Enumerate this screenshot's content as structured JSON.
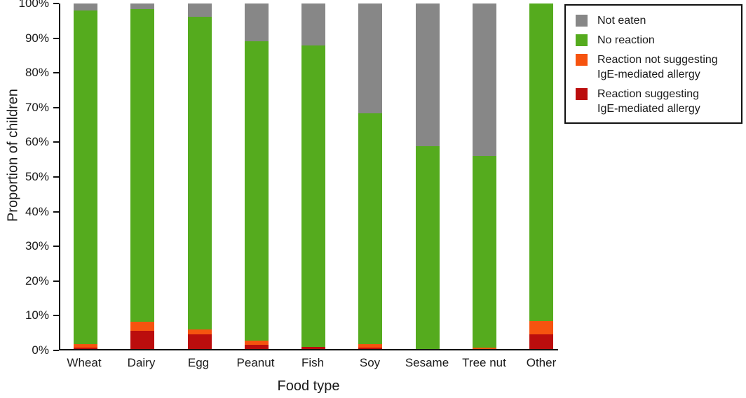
{
  "chart_data": {
    "type": "bar",
    "stacked": true,
    "stack_order": "bottom-to-top",
    "title": "",
    "xlabel": "Food type",
    "ylabel": "Proportion of children",
    "ylim": [
      0,
      100
    ],
    "yticks": [
      "0%",
      "10%",
      "20%",
      "30%",
      "40%",
      "50%",
      "60%",
      "70%",
      "80%",
      "90%",
      "100%"
    ],
    "grid": false,
    "categories": [
      "Wheat",
      "Dairy",
      "Egg",
      "Peanut",
      "Fish",
      "Soy",
      "Sesame",
      "Tree nut",
      "Other"
    ],
    "series": [
      {
        "key": "reaction-suggesting",
        "name": "Reaction suggesting IgE-mediated allergy",
        "color": "#bb0d0d",
        "values": [
          0.4,
          5.2,
          4.2,
          1.2,
          0.7,
          0.4,
          0,
          0,
          4.2
        ]
      },
      {
        "key": "reaction-not-suggesting",
        "name": "Reaction not suggesting IgE-mediated allergy",
        "color": "#f6530f",
        "values": [
          1.0,
          2.6,
          1.5,
          1.2,
          0,
          1.1,
          0,
          0.5,
          3.9
        ]
      },
      {
        "key": "no-reaction",
        "name": "No reaction",
        "color": "#55ab1e",
        "values": [
          96.6,
          90.5,
          90.4,
          86.7,
          87.1,
          66.8,
          58.8,
          55.3,
          91.9
        ]
      },
      {
        "key": "not-eaten",
        "name": "Not eaten",
        "color": "#878787",
        "values": [
          2.0,
          1.7,
          3.9,
          10.9,
          12.2,
          31.7,
          41.2,
          44.2,
          0
        ]
      }
    ],
    "legend": {
      "position": "top-right",
      "items": [
        {
          "key": "not-eaten",
          "label": "Not eaten",
          "color": "#878787"
        },
        {
          "key": "no-reaction",
          "label": "No reaction",
          "color": "#55ab1e"
        },
        {
          "key": "reaction-not-suggesting",
          "label": "Reaction not suggesting\nIgE-mediated allergy",
          "color": "#f6530f"
        },
        {
          "key": "reaction-suggesting",
          "label": "Reaction suggesting\nIgE-mediated allergy",
          "color": "#bb0d0d"
        }
      ]
    }
  }
}
